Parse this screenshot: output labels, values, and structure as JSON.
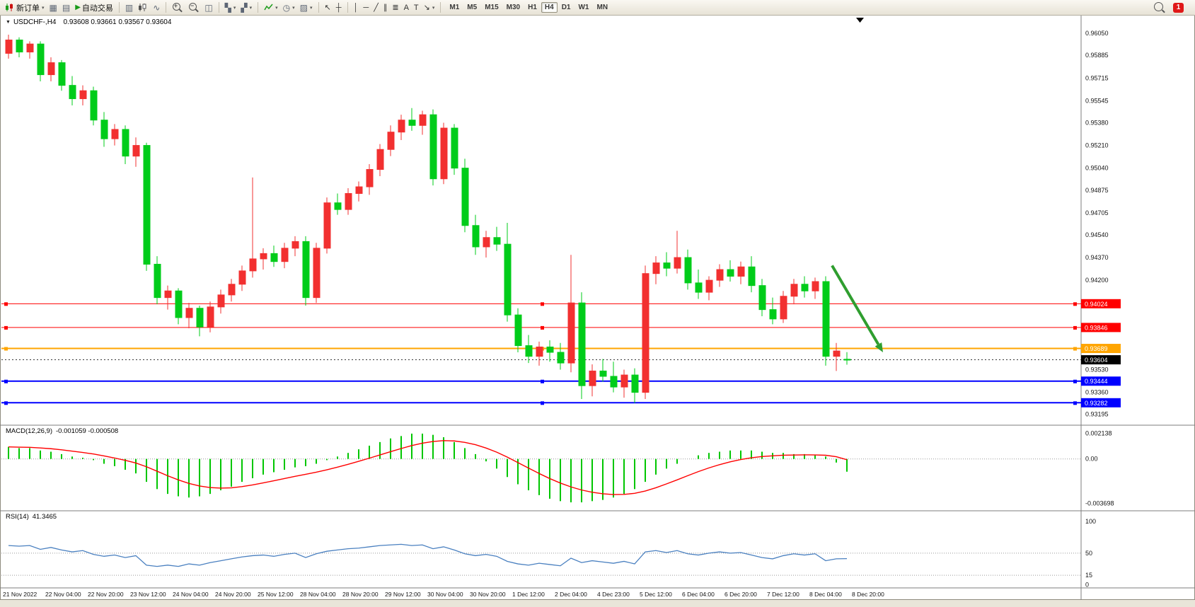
{
  "toolbar": {
    "new_order_label": "新订单",
    "auto_trading_label": "自动交易",
    "timeframes": [
      "M1",
      "M5",
      "M15",
      "M30",
      "H1",
      "H4",
      "D1",
      "W1",
      "MN"
    ],
    "active_timeframe": "H4",
    "notification_count": "1"
  },
  "chart_title": {
    "symbol": "USDCHF-,H4",
    "ohlc": "0.93608 0.93661 0.93567 0.93604"
  },
  "chart_data": {
    "type": "candlestick",
    "symbol": "USDCHF",
    "timeframe": "H4",
    "y_range": [
      0.93114,
      0.96183
    ],
    "y_axis_ticks": [
      "0.96050",
      "0.95885",
      "0.95715",
      "0.95545",
      "0.95380",
      "0.95210",
      "0.95040",
      "0.94875",
      "0.94705",
      "0.94540",
      "0.94370",
      "0.94200",
      "0.93530",
      "0.93360",
      "0.93195"
    ],
    "x_labels": [
      "21 Nov 2022",
      "22 Nov 04:00",
      "22 Nov 20:00",
      "23 Nov 12:00",
      "24 Nov 04:00",
      "24 Nov 20:00",
      "25 Nov 12:00",
      "28 Nov 04:00",
      "28 Nov 20:00",
      "29 Nov 12:00",
      "30 Nov 04:00",
      "30 Nov 20:00",
      "1 Dec 12:00",
      "2 Dec 04:00",
      "4 Dec 23:00",
      "5 Dec 12:00",
      "6 Dec 04:00",
      "6 Dec 20:00",
      "7 Dec 12:00",
      "8 Dec 04:00",
      "8 Dec 20:00"
    ],
    "candles": [
      [
        0.959,
        0.9604,
        0.9586,
        0.96
      ],
      [
        0.96,
        0.9602,
        0.9587,
        0.9591
      ],
      [
        0.9591,
        0.9599,
        0.9586,
        0.9597
      ],
      [
        0.9597,
        0.9599,
        0.9569,
        0.9574
      ],
      [
        0.9574,
        0.9587,
        0.9569,
        0.9583
      ],
      [
        0.9583,
        0.9585,
        0.9562,
        0.9566
      ],
      [
        0.9566,
        0.9573,
        0.9551,
        0.9556
      ],
      [
        0.9556,
        0.9566,
        0.9551,
        0.9562
      ],
      [
        0.9562,
        0.9565,
        0.9536,
        0.954
      ],
      [
        0.954,
        0.9546,
        0.952,
        0.9526
      ],
      [
        0.9526,
        0.9537,
        0.9521,
        0.9533
      ],
      [
        0.9533,
        0.9536,
        0.9507,
        0.9513
      ],
      [
        0.9513,
        0.9527,
        0.9505,
        0.9521
      ],
      [
        0.9521,
        0.9523,
        0.9427,
        0.9432
      ],
      [
        0.9432,
        0.9438,
        0.9402,
        0.9407
      ],
      [
        0.9407,
        0.9416,
        0.9398,
        0.9412
      ],
      [
        0.9412,
        0.9414,
        0.9387,
        0.9392
      ],
      [
        0.9392,
        0.9403,
        0.9384,
        0.9399
      ],
      [
        0.9399,
        0.9401,
        0.9378,
        0.9385
      ],
      [
        0.9385,
        0.9404,
        0.9381,
        0.94
      ],
      [
        0.94,
        0.9413,
        0.9395,
        0.9409
      ],
      [
        0.9409,
        0.9421,
        0.9404,
        0.9417
      ],
      [
        0.9417,
        0.9431,
        0.9412,
        0.9427
      ],
      [
        0.9427,
        0.9497,
        0.9422,
        0.9436
      ],
      [
        0.9436,
        0.9444,
        0.9428,
        0.944
      ],
      [
        0.944,
        0.9446,
        0.943,
        0.9434
      ],
      [
        0.9434,
        0.9448,
        0.9429,
        0.9444
      ],
      [
        0.9444,
        0.9453,
        0.9438,
        0.9449
      ],
      [
        0.9449,
        0.9453,
        0.9401,
        0.9407
      ],
      [
        0.9407,
        0.9448,
        0.9403,
        0.9444
      ],
      [
        0.9444,
        0.9482,
        0.944,
        0.9478
      ],
      [
        0.9478,
        0.9485,
        0.9469,
        0.9473
      ],
      [
        0.9473,
        0.9489,
        0.9469,
        0.9485
      ],
      [
        0.9485,
        0.9494,
        0.9479,
        0.949
      ],
      [
        0.949,
        0.9507,
        0.9484,
        0.9503
      ],
      [
        0.9503,
        0.9522,
        0.9498,
        0.9518
      ],
      [
        0.9518,
        0.9536,
        0.9513,
        0.9531
      ],
      [
        0.9531,
        0.9544,
        0.9525,
        0.954
      ],
      [
        0.954,
        0.9549,
        0.9532,
        0.9536
      ],
      [
        0.9536,
        0.9547,
        0.9529,
        0.9544
      ],
      [
        0.9544,
        0.9548,
        0.9491,
        0.9496
      ],
      [
        0.9496,
        0.9538,
        0.9492,
        0.9534
      ],
      [
        0.9534,
        0.9537,
        0.9499,
        0.9504
      ],
      [
        0.9504,
        0.9511,
        0.9456,
        0.9461
      ],
      [
        0.9461,
        0.9469,
        0.9439,
        0.9445
      ],
      [
        0.9445,
        0.9457,
        0.9437,
        0.9452
      ],
      [
        0.9452,
        0.946,
        0.9442,
        0.9447
      ],
      [
        0.9447,
        0.9463,
        0.9389,
        0.9394
      ],
      [
        0.9394,
        0.9399,
        0.9366,
        0.9371
      ],
      [
        0.9371,
        0.9379,
        0.9358,
        0.9363
      ],
      [
        0.9363,
        0.9374,
        0.9356,
        0.937
      ],
      [
        0.937,
        0.9375,
        0.9359,
        0.9366
      ],
      [
        0.9366,
        0.9373,
        0.9353,
        0.9358
      ],
      [
        0.9358,
        0.9439,
        0.9351,
        0.9403
      ],
      [
        0.9403,
        0.9411,
        0.9331,
        0.9341
      ],
      [
        0.9341,
        0.9357,
        0.9333,
        0.9352
      ],
      [
        0.9352,
        0.9361,
        0.9344,
        0.9348
      ],
      [
        0.9348,
        0.9359,
        0.9336,
        0.934
      ],
      [
        0.934,
        0.9353,
        0.9332,
        0.9349
      ],
      [
        0.9349,
        0.9354,
        0.9328,
        0.9336
      ],
      [
        0.9336,
        0.9431,
        0.9331,
        0.9425
      ],
      [
        0.9425,
        0.9438,
        0.9417,
        0.9433
      ],
      [
        0.9433,
        0.9441,
        0.9423,
        0.9429
      ],
      [
        0.9429,
        0.9457,
        0.9425,
        0.9437
      ],
      [
        0.9437,
        0.9443,
        0.9413,
        0.9418
      ],
      [
        0.9418,
        0.9428,
        0.9406,
        0.9411
      ],
      [
        0.9411,
        0.9423,
        0.9405,
        0.942
      ],
      [
        0.942,
        0.9432,
        0.9415,
        0.9428
      ],
      [
        0.9428,
        0.9435,
        0.9419,
        0.9423
      ],
      [
        0.9423,
        0.9434,
        0.9417,
        0.943
      ],
      [
        0.943,
        0.9438,
        0.9411,
        0.9416
      ],
      [
        0.9416,
        0.9421,
        0.9393,
        0.9398
      ],
      [
        0.9398,
        0.9407,
        0.9387,
        0.9391
      ],
      [
        0.9391,
        0.9412,
        0.9388,
        0.9408
      ],
      [
        0.9408,
        0.9421,
        0.9402,
        0.9417
      ],
      [
        0.9417,
        0.9423,
        0.9407,
        0.9412
      ],
      [
        0.9412,
        0.9422,
        0.9406,
        0.9419
      ],
      [
        0.9419,
        0.9423,
        0.9356,
        0.9363
      ],
      [
        0.9363,
        0.9373,
        0.9352,
        0.9367
      ],
      [
        0.93608,
        0.93661,
        0.93567,
        0.93604
      ]
    ],
    "levels": [
      {
        "price": 0.94024,
        "label": "0.94024",
        "color": "#ff0000",
        "line_width": 1
      },
      {
        "price": 0.93846,
        "label": "0.93846",
        "color": "#ff0000",
        "line_width": 1
      },
      {
        "price": 0.93689,
        "label": "0.93689",
        "color": "#ffa500",
        "line_width": 2
      },
      {
        "price": 0.93444,
        "label": "0.93444",
        "color": "#0000ff",
        "line_width": 2
      },
      {
        "price": 0.93282,
        "label": "0.93282",
        "color": "#0000ff",
        "line_width": 2
      }
    ],
    "current_price": {
      "value": 0.93604,
      "label": "0.93604"
    },
    "indicators": {
      "macd": {
        "label": "MACD(12,26,9)",
        "values_text": "-0.001059 -0.000508",
        "axis_ticks": [
          "0.002138",
          "0.00",
          "-0.003698"
        ],
        "range": [
          -0.0043,
          0.0028
        ],
        "histogram": [
          0.001,
          0.0009,
          0.0009,
          0.0007,
          0.0006,
          0.0004,
          0.0002,
          0.0001,
          -0.0001,
          -0.0004,
          -0.0006,
          -0.0009,
          -0.0012,
          -0.0019,
          -0.0025,
          -0.0029,
          -0.0031,
          -0.0032,
          -0.0031,
          -0.0029,
          -0.0026,
          -0.0023,
          -0.0019,
          -0.0016,
          -0.0013,
          -0.0011,
          -0.0009,
          -0.0007,
          -0.0006,
          -0.0004,
          -0.0001,
          0.0002,
          0.0005,
          0.0008,
          0.0011,
          0.0014,
          0.0017,
          0.0019,
          0.0021,
          0.0021,
          0.002,
          0.0018,
          0.0014,
          0.0009,
          0.0004,
          -0.0002,
          -0.0008,
          -0.0015,
          -0.0021,
          -0.0026,
          -0.003,
          -0.0033,
          -0.0035,
          -0.0036,
          -0.0036,
          -0.0035,
          -0.0034,
          -0.0032,
          -0.0029,
          -0.0025,
          -0.0019,
          -0.0013,
          -0.0008,
          -0.0004,
          0.0,
          0.0003,
          0.0005,
          0.0006,
          0.0007,
          0.0007,
          0.0007,
          0.0006,
          0.0005,
          0.0005,
          0.0004,
          0.0004,
          0.0003,
          0.0002,
          -0.0003,
          -0.001059
        ]
      },
      "rsi": {
        "label": "RSI(14)",
        "value_text": "41.3465",
        "axis_ticks": [
          "100",
          "50",
          "15",
          "0"
        ],
        "range": [
          -5,
          117
        ],
        "values": [
          62,
          61,
          62,
          56,
          59,
          55,
          52,
          54,
          48,
          45,
          47,
          43,
          46,
          31,
          29,
          31,
          29,
          33,
          31,
          35,
          38,
          41,
          44,
          46,
          47,
          45,
          48,
          50,
          43,
          49,
          53,
          55,
          57,
          58,
          60,
          62,
          63,
          64,
          62,
          63,
          57,
          60,
          55,
          49,
          46,
          48,
          45,
          37,
          33,
          31,
          34,
          32,
          30,
          42,
          35,
          38,
          36,
          34,
          37,
          33,
          52,
          54,
          51,
          54,
          49,
          47,
          50,
          52,
          50,
          51,
          47,
          43,
          41,
          46,
          49,
          47,
          49,
          38,
          41,
          41.3
        ]
      }
    },
    "annotation_arrow": {
      "from": {
        "bar": 77.6,
        "price": 0.9431
      },
      "to": {
        "bar": 82.4,
        "price": 0.9366
      },
      "color": "#2f9e2f"
    },
    "colors": {
      "bull": "#f23030",
      "bear": "#00cc1a",
      "macd_hist": "#00c600",
      "macd_signal": "#ff0000",
      "rsi_line": "#4a80c0"
    }
  }
}
